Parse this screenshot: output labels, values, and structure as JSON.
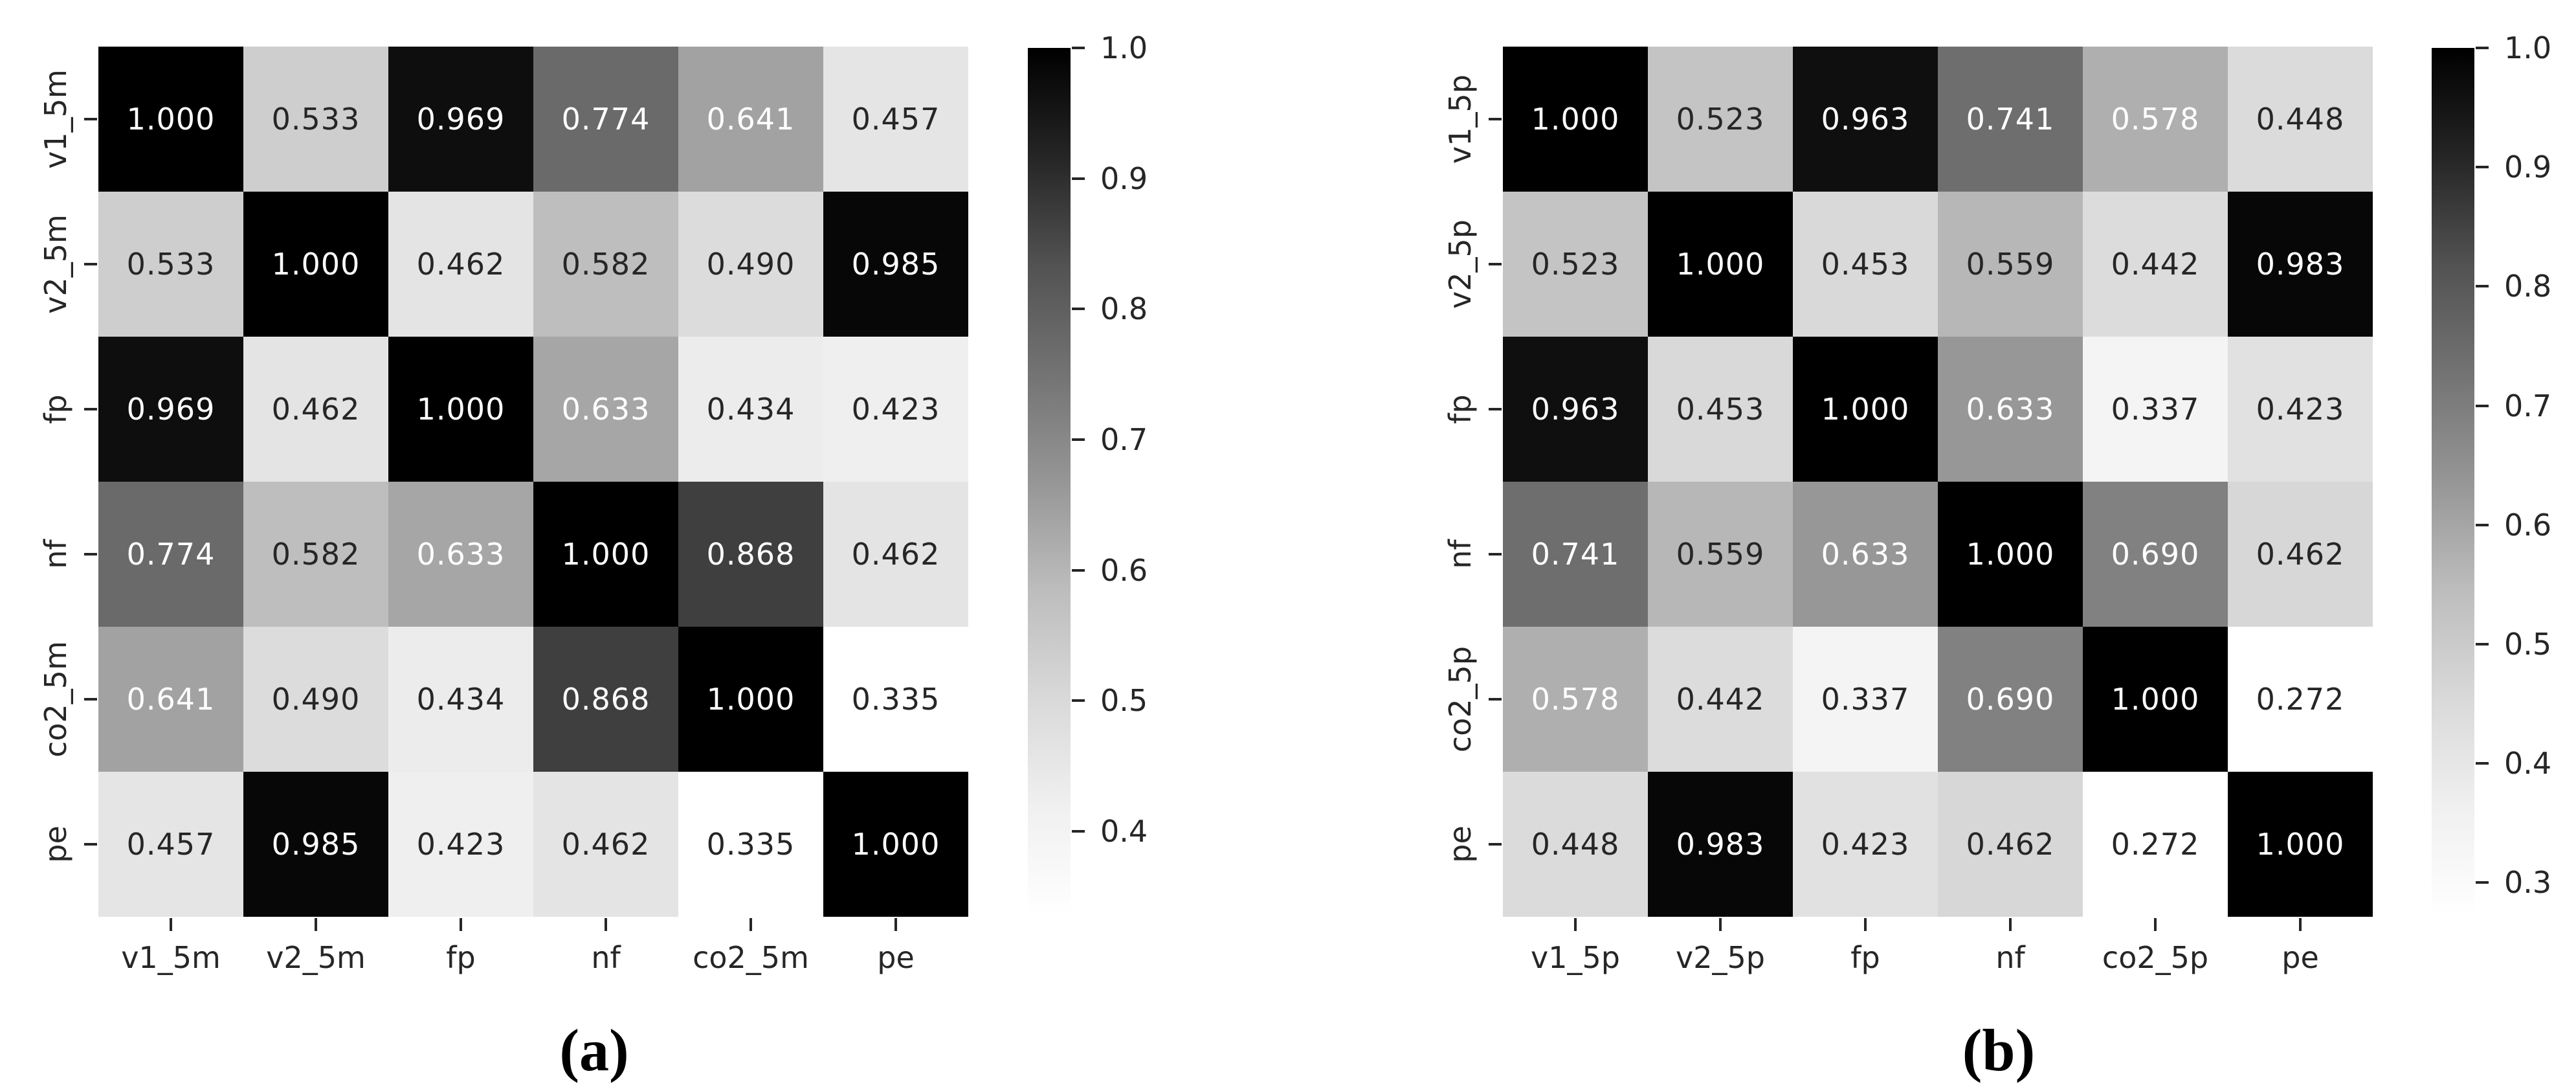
{
  "colors": {
    "background": "#ffffff",
    "annotation_on_dark": "#ffffff",
    "annotation_on_light": "#262626",
    "tick_color": "#262626",
    "caption_color": "#000000",
    "colormap_start": "#ffffff",
    "colormap_end": "#000000"
  },
  "chart_data": [
    {
      "type": "heatmap",
      "panel": "a",
      "caption": "(a)",
      "x_labels": [
        "v1_5m",
        "v2_5m",
        "fp",
        "nf",
        "co2_5m",
        "pe"
      ],
      "y_labels": [
        "v1_5m",
        "v2_5m",
        "fp",
        "nf",
        "co2_5m",
        "pe"
      ],
      "matrix": [
        [
          1.0,
          0.533,
          0.969,
          0.774,
          0.641,
          0.457
        ],
        [
          0.533,
          1.0,
          0.462,
          0.582,
          0.49,
          0.985
        ],
        [
          0.969,
          0.462,
          1.0,
          0.633,
          0.434,
          0.423
        ],
        [
          0.774,
          0.582,
          0.633,
          1.0,
          0.868,
          0.462
        ],
        [
          0.641,
          0.49,
          0.434,
          0.868,
          1.0,
          0.335
        ],
        [
          0.457,
          0.985,
          0.423,
          0.462,
          0.335,
          1.0
        ]
      ],
      "value_decimals": 3,
      "colormap": "Greys",
      "vmin": 0.335,
      "vmax": 1.0,
      "colorbar_ticks": [
        1.0,
        0.9,
        0.8,
        0.7,
        0.6,
        0.5,
        0.4
      ],
      "colorbar_tick_decimals": 1,
      "legend_position": "right",
      "grid": false
    },
    {
      "type": "heatmap",
      "panel": "b",
      "caption": "(b)",
      "x_labels": [
        "v1_5p",
        "v2_5p",
        "fp",
        "nf",
        "co2_5p",
        "pe"
      ],
      "y_labels": [
        "v1_5p",
        "v2_5p",
        "fp",
        "nf",
        "co2_5p",
        "pe"
      ],
      "matrix": [
        [
          1.0,
          0.523,
          0.963,
          0.741,
          0.578,
          0.448
        ],
        [
          0.523,
          1.0,
          0.453,
          0.559,
          0.442,
          0.983
        ],
        [
          0.963,
          0.453,
          1.0,
          0.633,
          0.337,
          0.423
        ],
        [
          0.741,
          0.559,
          0.633,
          1.0,
          0.69,
          0.462
        ],
        [
          0.578,
          0.442,
          0.337,
          0.69,
          1.0,
          0.272
        ],
        [
          0.448,
          0.983,
          0.423,
          0.462,
          0.272,
          1.0
        ]
      ],
      "value_decimals": 3,
      "colormap": "Greys",
      "vmin": 0.272,
      "vmax": 1.0,
      "colorbar_ticks": [
        1.0,
        0.9,
        0.8,
        0.7,
        0.6,
        0.5,
        0.4,
        0.3
      ],
      "colorbar_tick_decimals": 1,
      "legend_position": "right",
      "grid": false
    }
  ]
}
